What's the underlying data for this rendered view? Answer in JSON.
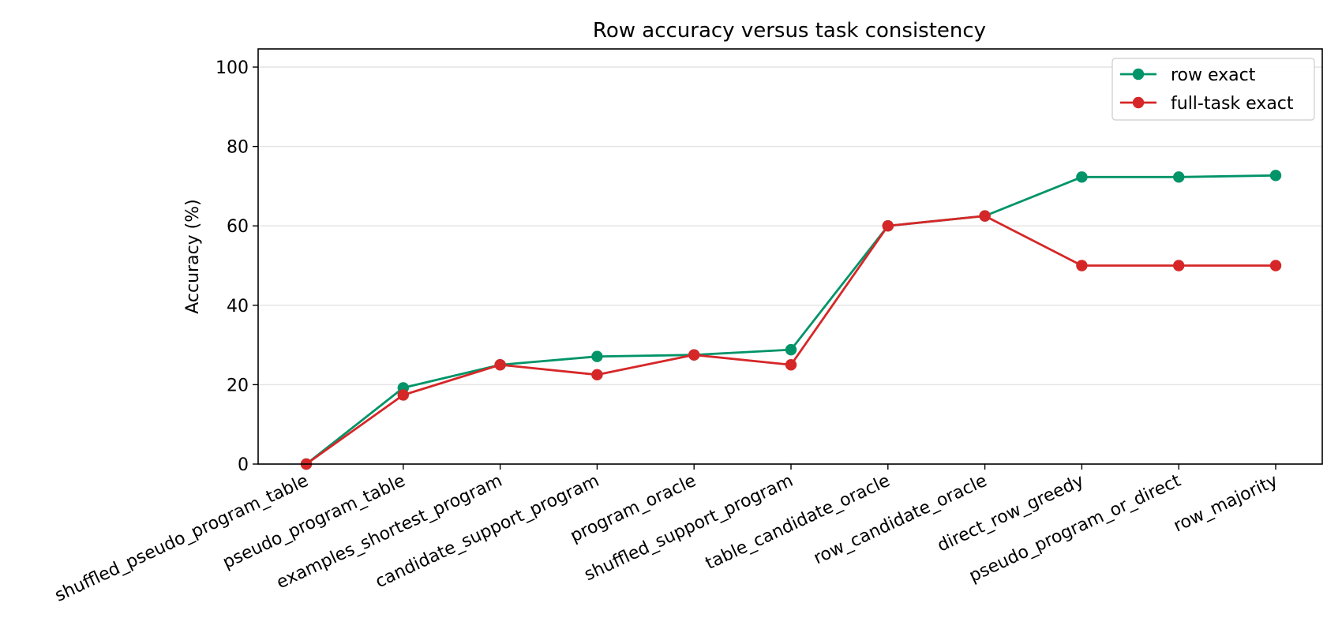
{
  "chart_data": {
    "type": "line",
    "title": "Row accuracy versus task consistency",
    "xlabel": "",
    "ylabel": "Accuracy (%)",
    "ylim": [
      0,
      105
    ],
    "yticks": [
      0,
      20,
      40,
      60,
      80,
      100
    ],
    "grid": "horizontal",
    "legend_position": "top-right",
    "categories": [
      "shuffled_pseudo_program_table",
      "pseudo_program_table",
      "examples_shortest_program",
      "candidate_support_program",
      "program_oracle",
      "shuffled_support_program",
      "table_candidate_oracle",
      "row_candidate_oracle",
      "direct_row_greedy",
      "pseudo_program_or_direct",
      "row_majority"
    ],
    "series": [
      {
        "name": "row exact",
        "color": "#009468",
        "values": [
          0.0,
          19.2,
          25.0,
          27.1,
          27.5,
          28.8,
          60.0,
          62.5,
          72.3,
          72.3,
          72.7
        ]
      },
      {
        "name": "full-task exact",
        "color": "#d62728",
        "values": [
          0.0,
          17.4,
          25.0,
          22.5,
          27.5,
          25.0,
          60.0,
          62.5,
          50.0,
          50.0,
          50.0
        ]
      }
    ]
  }
}
